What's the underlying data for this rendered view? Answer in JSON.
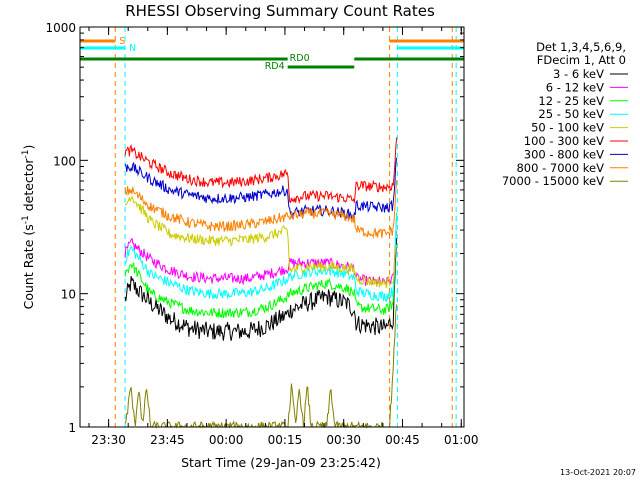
{
  "chart_data": {
    "type": "line",
    "title": "RHESSI Observing Summary Count Rates",
    "xlabel": "Start Time (29-Jan-09 23:25:42)",
    "ylabel_parts": {
      "pre": "Count Rate (s",
      "sup": "-1",
      "post": " detector",
      "sup2": "-1",
      "close": ")"
    },
    "yscale": "log",
    "ylim": [
      1,
      1000
    ],
    "xlim_minutes": [
      -3,
      95
    ],
    "x_tick_labels": [
      "23:30",
      "23:45",
      "00:00",
      "00:15",
      "00:30",
      "00:45",
      "01:00"
    ],
    "y_tick_labels": [
      "1",
      "10",
      "100",
      "1000"
    ],
    "timestamp": "13-Oct-2021 20:07",
    "legend": {
      "header": [
        "Det 1,3,4,5,6,9,",
        "FDecim 1, Att 0"
      ],
      "entries": [
        {
          "label": "3 - 6 keV",
          "color": "#000000"
        },
        {
          "label": "6 - 12 keV",
          "color": "#ff00ff"
        },
        {
          "label": "12 - 25 keV",
          "color": "#00ff00"
        },
        {
          "label": "25 - 50 keV",
          "color": "#00ffff"
        },
        {
          "label": "50 - 100 keV",
          "color": "#cccc00"
        },
        {
          "label": "100 - 300 keV",
          "color": "#ff0000"
        },
        {
          "label": "300 - 800 keV",
          "color": "#0000cc"
        },
        {
          "label": "800 - 7000 keV",
          "color": "#ff8000"
        },
        {
          "label": "7000 - 15000 keV",
          "color": "#808000"
        }
      ]
    },
    "flags": [
      {
        "label": "S",
        "color": "#ff8000",
        "segments_min": [
          [
            -3,
            6
          ],
          [
            76,
            95
          ]
        ]
      },
      {
        "label": "N",
        "color": "#00ffff",
        "segments_min": [
          [
            -3,
            8.5
          ],
          [
            78,
            95
          ]
        ]
      }
    ],
    "rd_labels": {
      "upper": "RD0",
      "lower": "RD4",
      "color": "#008000"
    },
    "rd_segments_min": {
      "upper": [
        [
          -3,
          50
        ],
        [
          67,
          95
        ]
      ],
      "lower": [
        [
          50,
          67
        ]
      ]
    },
    "event_lines": [
      {
        "x": 6,
        "color": "#ff8000"
      },
      {
        "x": 8.5,
        "color": "#00ffff"
      },
      {
        "x": 76,
        "color": "#ff8000"
      },
      {
        "x": 78,
        "color": "#00ffff"
      },
      {
        "x": 92,
        "color": "#ff8000"
      },
      {
        "x": 93,
        "color": "#00ffff"
      }
    ],
    "series": [
      {
        "name": "3 - 6 keV",
        "color": "#000000",
        "x": [
          8.5,
          10,
          15,
          20,
          25,
          30,
          35,
          40,
          45,
          50,
          50.5,
          55,
          60,
          65,
          67,
          67.5,
          70,
          75,
          77,
          78
        ],
        "y": [
          9,
          12,
          8.5,
          6.5,
          5.5,
          5.2,
          5.2,
          5.2,
          5.8,
          7.0,
          7.5,
          8.5,
          9.5,
          8.5,
          7.5,
          6.0,
          5.8,
          5.5,
          6.5,
          45
        ]
      },
      {
        "name": "6 - 12 keV",
        "color": "#ff00ff",
        "x": [
          8.5,
          10,
          15,
          20,
          25,
          30,
          35,
          40,
          45,
          50,
          50.5,
          55,
          60,
          65,
          67,
          67.5,
          70,
          75,
          77,
          78
        ],
        "y": [
          20,
          24,
          18,
          15,
          13.5,
          13,
          13,
          13,
          14,
          15.5,
          17,
          17,
          17,
          16,
          15.5,
          13,
          12.5,
          12,
          13,
          40
        ]
      },
      {
        "name": "12 - 25 keV",
        "color": "#00ff00",
        "x": [
          8.5,
          10,
          15,
          20,
          25,
          30,
          35,
          40,
          45,
          50,
          50.5,
          55,
          60,
          65,
          67,
          67.5,
          70,
          75,
          77,
          78
        ],
        "y": [
          14,
          17,
          10,
          8.5,
          7.5,
          7.2,
          7.2,
          7.3,
          8.0,
          9.5,
          10,
          11,
          12,
          11,
          10,
          8,
          7.8,
          7.5,
          8.5,
          60
        ]
      },
      {
        "name": "25 - 50 keV",
        "color": "#00ffff",
        "x": [
          8.5,
          10,
          15,
          20,
          25,
          30,
          35,
          40,
          45,
          50,
          50.5,
          55,
          60,
          65,
          67,
          67.5,
          70,
          75,
          77,
          78
        ],
        "y": [
          18,
          22,
          14,
          12,
          10.5,
          10,
          10,
          10.2,
          11,
          13,
          13.5,
          14.5,
          15,
          14,
          13,
          10.5,
          10,
          9.5,
          10.5,
          50
        ]
      },
      {
        "name": "50 - 100 keV",
        "color": "#cccc00",
        "x": [
          8.5,
          10,
          15,
          20,
          25,
          30,
          35,
          40,
          45,
          50,
          50.5,
          55,
          60,
          65,
          67,
          67.5,
          70,
          75,
          77,
          78
        ],
        "y": [
          45,
          55,
          35,
          28,
          26,
          25,
          25,
          25.5,
          27,
          30,
          15,
          16,
          16,
          15.5,
          15,
          13,
          12.5,
          12,
          13,
          30
        ]
      },
      {
        "name": "100 - 300 keV",
        "color": "#ff0000",
        "x": [
          8.5,
          10,
          15,
          20,
          25,
          30,
          35,
          40,
          45,
          50,
          50.5,
          55,
          60,
          65,
          67,
          67.5,
          70,
          75,
          77,
          78
        ],
        "y": [
          115,
          118,
          95,
          80,
          72,
          68,
          68,
          70,
          74,
          80,
          52,
          54,
          54,
          52,
          50,
          65,
          64,
          63,
          65,
          190
        ]
      },
      {
        "name": "300 - 800 keV",
        "color": "#0000cc",
        "x": [
          8.5,
          10,
          15,
          20,
          25,
          30,
          35,
          40,
          45,
          50,
          50.5,
          55,
          60,
          65,
          67,
          67.5,
          70,
          75,
          77,
          78
        ],
        "y": [
          88,
          90,
          72,
          60,
          55,
          52,
          52,
          53,
          56,
          60,
          40,
          42,
          42,
          40,
          38,
          46,
          45,
          44,
          46,
          130
        ]
      },
      {
        "name": "800 - 7000 keV",
        "color": "#ff8000",
        "x": [
          8.5,
          10,
          15,
          20,
          25,
          30,
          35,
          40,
          45,
          50,
          50.5,
          55,
          60,
          65,
          67,
          67.5,
          70,
          75,
          77,
          78
        ],
        "y": [
          58,
          60,
          45,
          38,
          34,
          32,
          32,
          33,
          35,
          38,
          38,
          40,
          40,
          38,
          36,
          30,
          29,
          28,
          30,
          90
        ]
      },
      {
        "name": "7000 - 15000 keV",
        "color": "#808000",
        "x": [
          8.5,
          10,
          11,
          12,
          13,
          14,
          15,
          16,
          50,
          51,
          52,
          53,
          54,
          55,
          56,
          60,
          61,
          62,
          76,
          77,
          78
        ],
        "y": [
          1,
          2,
          1,
          2,
          1,
          2,
          1,
          1,
          1,
          2,
          1,
          2,
          1,
          2,
          1,
          1,
          2,
          1,
          1,
          3,
          12
        ]
      }
    ]
  }
}
